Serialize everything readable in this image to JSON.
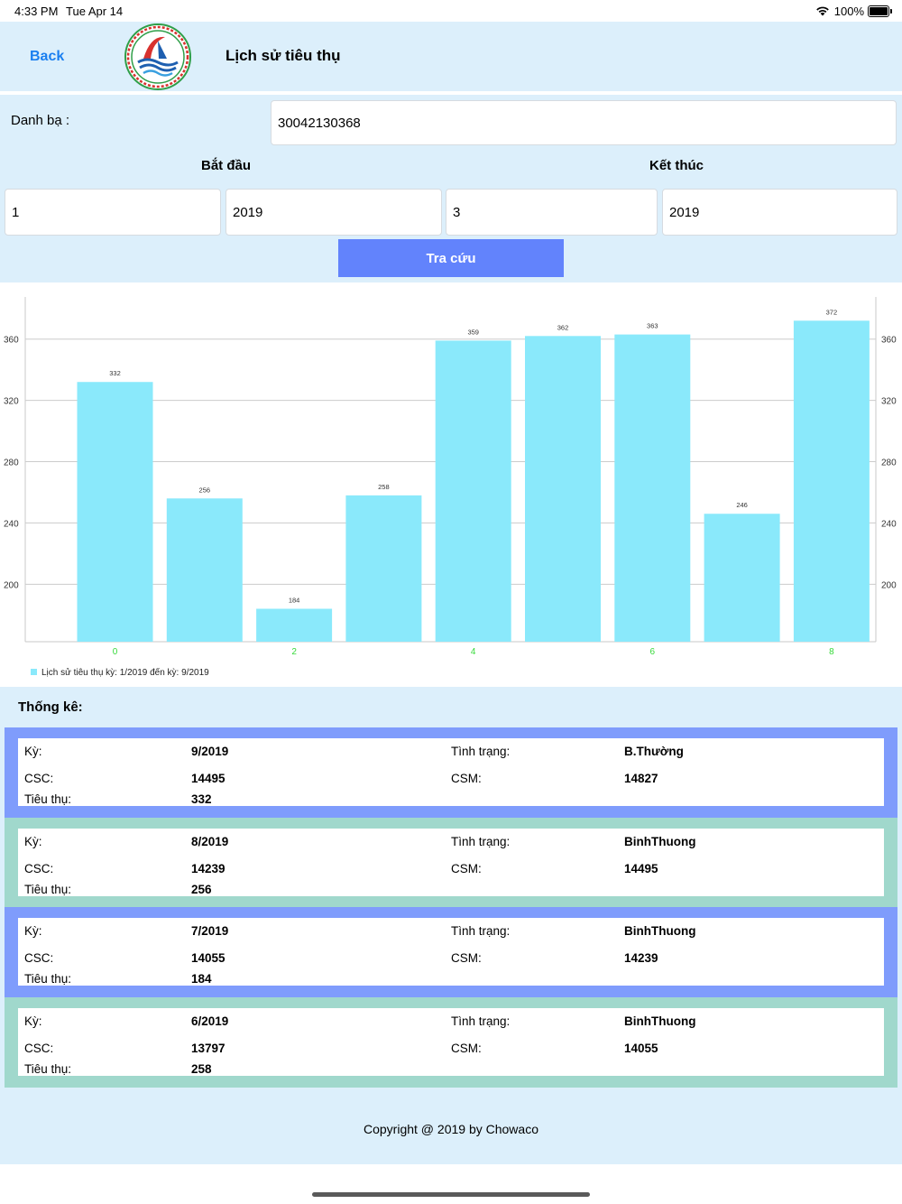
{
  "status_bar": {
    "time": "4:33 PM",
    "date": "Tue Apr 14",
    "battery": "100%"
  },
  "nav": {
    "back_label": "Back",
    "title": "Lịch sử tiêu thụ"
  },
  "form": {
    "contact_label": "Danh bạ :",
    "contact_value": "30042130368",
    "start_label": "Bắt đầu",
    "end_label": "Kết thúc",
    "start_month": "1",
    "start_year": "2019",
    "end_month": "3",
    "end_year": "2019",
    "search_label": "Tra cứu"
  },
  "chart_data": {
    "type": "bar",
    "categories": [
      "0",
      "1",
      "2",
      "3",
      "4",
      "5",
      "6",
      "7",
      "8"
    ],
    "x_tick_labels": [
      "0",
      "",
      "2",
      "",
      "4",
      "",
      "6",
      "",
      "8"
    ],
    "values": [
      332,
      256,
      184,
      258,
      359,
      362,
      363,
      246,
      372
    ],
    "data_labels": [
      "332",
      "256",
      "184",
      "258",
      "359",
      "362",
      "363",
      "246",
      "372"
    ],
    "y_ticks": [
      "200",
      "240",
      "280",
      "320",
      "360"
    ],
    "ylim": [
      162.5,
      387.5
    ],
    "legend": "Lịch sử tiêu thụ kỳ: 1/2019 đến kỳ: 9/2019",
    "legend_position": "bottom-left",
    "grid": "horizontal",
    "bar_color": "#8ae9fb",
    "x_label_color": "#37d93a"
  },
  "stats": {
    "heading": "Thống kê:",
    "labels": {
      "period": "Kỳ:",
      "status": "Tình trạng:",
      "csc": "CSC:",
      "csm": "CSM:",
      "usage": "Tiêu thụ:"
    },
    "records": [
      {
        "period": "9/2019",
        "status": "B.Thường",
        "csc": "14495",
        "csm": "14827",
        "usage": "332",
        "color": "#7f9cfc"
      },
      {
        "period": "8/2019",
        "status": "BinhThuong",
        "csc": "14239",
        "csm": "14495",
        "usage": "256",
        "color": "#a0d8cc"
      },
      {
        "period": "7/2019",
        "status": "BinhThuong",
        "csc": "14055",
        "csm": "14239",
        "usage": "184",
        "color": "#7f9cfc"
      },
      {
        "period": "6/2019",
        "status": "BinhThuong",
        "csc": "13797",
        "csm": "14055",
        "usage": "258",
        "color": "#a0d8cc"
      }
    ]
  },
  "footer": {
    "copyright": "Copyright @ 2019 by Chowaco"
  }
}
